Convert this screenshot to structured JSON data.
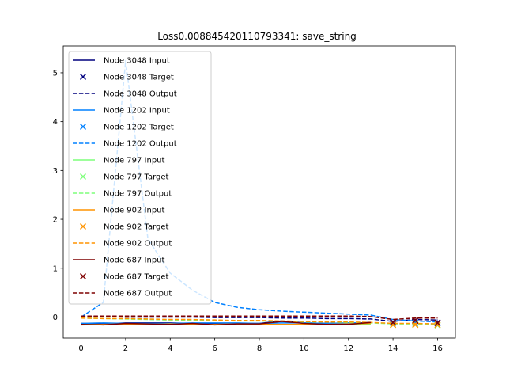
{
  "chart_data": {
    "type": "line",
    "title": "Loss0.008845420110793341: save_string",
    "xlabel": "",
    "ylabel": "",
    "xlim": [
      -0.8,
      16.8
    ],
    "ylim": [
      -0.43,
      5.55
    ],
    "xticks": [
      0,
      2,
      4,
      6,
      8,
      10,
      12,
      14,
      16
    ],
    "yticks": [
      0,
      1,
      2,
      3,
      4,
      5
    ],
    "grid": false,
    "legend_position": "upper-left",
    "series": [
      {
        "name": "Node 3048 Input",
        "kind": "input",
        "color": "#00007f",
        "x": [
          0,
          1,
          2,
          3,
          4,
          5,
          6,
          7,
          8,
          9,
          10,
          11,
          12,
          13
        ],
        "y": [
          -0.13,
          -0.14,
          -0.12,
          -0.12,
          -0.12,
          -0.13,
          -0.13,
          -0.13,
          -0.13,
          -0.08,
          -0.12,
          -0.13,
          -0.13,
          -0.11
        ]
      },
      {
        "name": "Node 3048 Target",
        "kind": "target",
        "color": "#00007f",
        "x": [
          14,
          15,
          16
        ],
        "y": [
          -0.1,
          -0.08,
          -0.11
        ]
      },
      {
        "name": "Node 3048 Output",
        "kind": "output",
        "color": "#00007f",
        "x": [
          0,
          1,
          2,
          3,
          4,
          5,
          6,
          7,
          8,
          9,
          10,
          11,
          12,
          13,
          14,
          15,
          16
        ],
        "y": [
          0.01,
          0.01,
          0.0,
          0.0,
          0.0,
          0.0,
          -0.01,
          -0.01,
          -0.01,
          -0.02,
          -0.02,
          -0.03,
          -0.03,
          -0.04,
          -0.09,
          -0.05,
          -0.06
        ]
      },
      {
        "name": "Node 1202 Input",
        "kind": "input",
        "color": "#0080ff",
        "x": [
          0,
          1,
          2,
          3,
          4,
          5,
          6,
          7,
          8,
          9,
          10,
          11,
          12,
          13
        ],
        "y": [
          -0.13,
          -0.12,
          -0.13,
          -0.13,
          -0.13,
          -0.12,
          -0.12,
          -0.12,
          -0.13,
          -0.12,
          -0.12,
          -0.13,
          -0.12,
          -0.12
        ]
      },
      {
        "name": "Node 1202 Target",
        "kind": "target",
        "color": "#0080ff",
        "x": [
          14,
          15,
          16
        ],
        "y": [
          -0.12,
          -0.12,
          -0.13
        ]
      },
      {
        "name": "Node 1202 Output",
        "kind": "output",
        "color": "#0080ff",
        "x": [
          0,
          1,
          2,
          3,
          4,
          5,
          6,
          7,
          8,
          9,
          10,
          11,
          12,
          13,
          14,
          15,
          16
        ],
        "y": [
          0.0,
          0.3,
          5.25,
          1.6,
          0.9,
          0.55,
          0.3,
          0.2,
          0.15,
          0.12,
          0.1,
          0.08,
          0.06,
          0.04,
          -0.05,
          -0.08,
          -0.1
        ]
      },
      {
        "name": "Node 797 Input",
        "kind": "input",
        "color": "#7dff7a",
        "x": [
          0,
          1,
          2,
          3,
          4,
          5,
          6,
          7,
          8,
          9,
          10,
          11,
          12,
          13
        ],
        "y": [
          -0.15,
          -0.15,
          -0.15,
          -0.15,
          -0.15,
          -0.15,
          -0.15,
          -0.15,
          -0.15,
          -0.15,
          -0.15,
          -0.15,
          -0.15,
          -0.15
        ]
      },
      {
        "name": "Node 797 Target",
        "kind": "target",
        "color": "#7dff7a",
        "x": [
          14,
          15,
          16
        ],
        "y": [
          -0.16,
          -0.15,
          -0.17
        ]
      },
      {
        "name": "Node 797 Output",
        "kind": "output",
        "color": "#7dff7a",
        "x": [
          0,
          1,
          2,
          3,
          4,
          5,
          6,
          7,
          8,
          9,
          10,
          11,
          12,
          13,
          14,
          15,
          16
        ],
        "y": [
          -0.02,
          -0.03,
          -0.04,
          -0.05,
          -0.06,
          -0.07,
          -0.07,
          -0.08,
          -0.08,
          -0.09,
          -0.1,
          -0.1,
          -0.11,
          -0.12,
          -0.14,
          -0.14,
          -0.15
        ]
      },
      {
        "name": "Node 902 Input",
        "kind": "input",
        "color": "#ff9400",
        "x": [
          0,
          1,
          2,
          3,
          4,
          5,
          6,
          7,
          8,
          9,
          10,
          11,
          12,
          13
        ],
        "y": [
          -0.16,
          -0.15,
          -0.14,
          -0.15,
          -0.14,
          -0.15,
          -0.15,
          -0.14,
          -0.15,
          -0.15,
          -0.15,
          -0.15,
          -0.14,
          -0.13
        ]
      },
      {
        "name": "Node 902 Target",
        "kind": "target",
        "color": "#ff9400",
        "x": [
          14,
          15,
          16
        ],
        "y": [
          -0.16,
          -0.16,
          -0.16
        ]
      },
      {
        "name": "Node 902 Output",
        "kind": "output",
        "color": "#ff9400",
        "x": [
          0,
          1,
          2,
          3,
          4,
          5,
          6,
          7,
          8,
          9,
          10,
          11,
          12,
          13,
          14,
          15,
          16
        ],
        "y": [
          -0.02,
          -0.03,
          -0.03,
          -0.04,
          -0.05,
          -0.05,
          -0.06,
          -0.07,
          -0.07,
          -0.08,
          -0.09,
          -0.1,
          -0.1,
          -0.11,
          -0.13,
          -0.13,
          -0.14
        ]
      },
      {
        "name": "Node 687 Input",
        "kind": "input",
        "color": "#7f0000",
        "x": [
          0,
          1,
          2,
          3,
          4,
          5,
          6,
          7,
          8,
          9,
          10,
          11,
          12,
          13
        ],
        "y": [
          -0.15,
          -0.16,
          -0.13,
          -0.14,
          -0.15,
          -0.13,
          -0.16,
          -0.14,
          -0.14,
          -0.09,
          -0.13,
          -0.15,
          -0.15,
          -0.11
        ]
      },
      {
        "name": "Node 687 Target",
        "kind": "target",
        "color": "#7f0000",
        "x": [
          14,
          15,
          16
        ],
        "y": [
          -0.11,
          -0.07,
          -0.12
        ]
      },
      {
        "name": "Node 687 Output",
        "kind": "output",
        "color": "#7f0000",
        "x": [
          0,
          1,
          2,
          3,
          4,
          5,
          6,
          7,
          8,
          9,
          10,
          11,
          12,
          13,
          14,
          15,
          16
        ],
        "y": [
          0.02,
          0.02,
          0.02,
          0.02,
          0.02,
          0.02,
          0.02,
          0.02,
          0.02,
          0.02,
          0.02,
          0.02,
          0.02,
          0.01,
          -0.05,
          -0.02,
          -0.02
        ]
      }
    ]
  }
}
